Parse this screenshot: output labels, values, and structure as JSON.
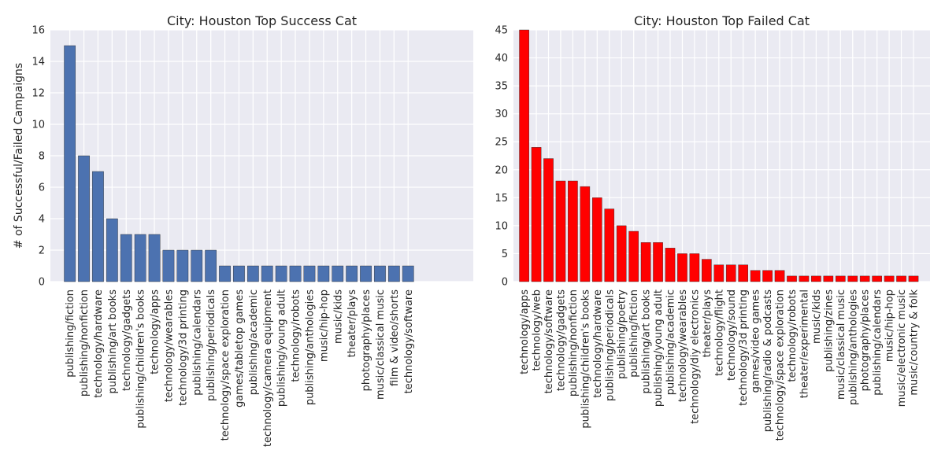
{
  "chart_data": [
    {
      "type": "bar",
      "title": "City: Houston Top Success Cat",
      "xlabel": "",
      "ylabel": "# of Successful/Failed Campaigns",
      "ylim": [
        0,
        16
      ],
      "yticks": [
        0,
        2,
        4,
        6,
        8,
        10,
        12,
        14,
        16
      ],
      "grid": true,
      "bar_color": "#4c72b0",
      "categories": [
        "publishing/fiction",
        "publishing/nonfiction",
        "technology/hardware",
        "publishing/art books",
        "technology/gadgets",
        "publishing/children's books",
        "technology/apps",
        "technology/wearables",
        "technology/3d printing",
        "publishing/calendars",
        "publishing/periodicals",
        "technology/space exploration",
        "games/tabletop games",
        "publishing/academic",
        "technology/camera equipment",
        "publishing/young adult",
        "technology/robots",
        "publishing/anthologies",
        "music/hip-hop",
        "music/kids",
        "theater/plays",
        "photography/places",
        "music/classical music",
        "film & video/shorts",
        "technology/software"
      ],
      "values": [
        15,
        8,
        7,
        4,
        3,
        3,
        3,
        2,
        2,
        2,
        2,
        1,
        1,
        1,
        1,
        1,
        1,
        1,
        1,
        1,
        1,
        1,
        1,
        1,
        1
      ]
    },
    {
      "type": "bar",
      "title": "City: Houston Top Failed Cat",
      "xlabel": "",
      "ylabel": "",
      "ylim": [
        0,
        45
      ],
      "yticks": [
        0,
        5,
        10,
        15,
        20,
        25,
        30,
        35,
        40,
        45
      ],
      "grid": true,
      "bar_color": "#ff0000",
      "categories": [
        "technology/apps",
        "technology/web",
        "technology/software",
        "technology/gadgets",
        "publishing/nonfiction",
        "publishing/children's books",
        "technology/hardware",
        "publishing/periodicals",
        "publishing/poetry",
        "publishing/fiction",
        "publishing/art books",
        "publishing/young adult",
        "publishing/academic",
        "technology/wearables",
        "technology/diy electronics",
        "theater/plays",
        "technology/flight",
        "technology/sound",
        "technology/3d printing",
        "games/video games",
        "publishing/radio & podcasts",
        "technology/space exploration",
        "technology/robots",
        "theater/experimental",
        "music/kids",
        "publishing/zines",
        "music/classical music",
        "publishing/anthologies",
        "photography/places",
        "publishing/calendars",
        "music/hip-hop",
        "music/electronic music",
        "music/country & folk"
      ],
      "values": [
        45,
        24,
        22,
        18,
        18,
        17,
        15,
        13,
        10,
        9,
        7,
        7,
        6,
        5,
        5,
        4,
        3,
        3,
        3,
        2,
        2,
        2,
        1,
        1,
        1,
        1,
        1,
        1,
        1,
        1,
        1,
        1,
        1
      ]
    }
  ]
}
